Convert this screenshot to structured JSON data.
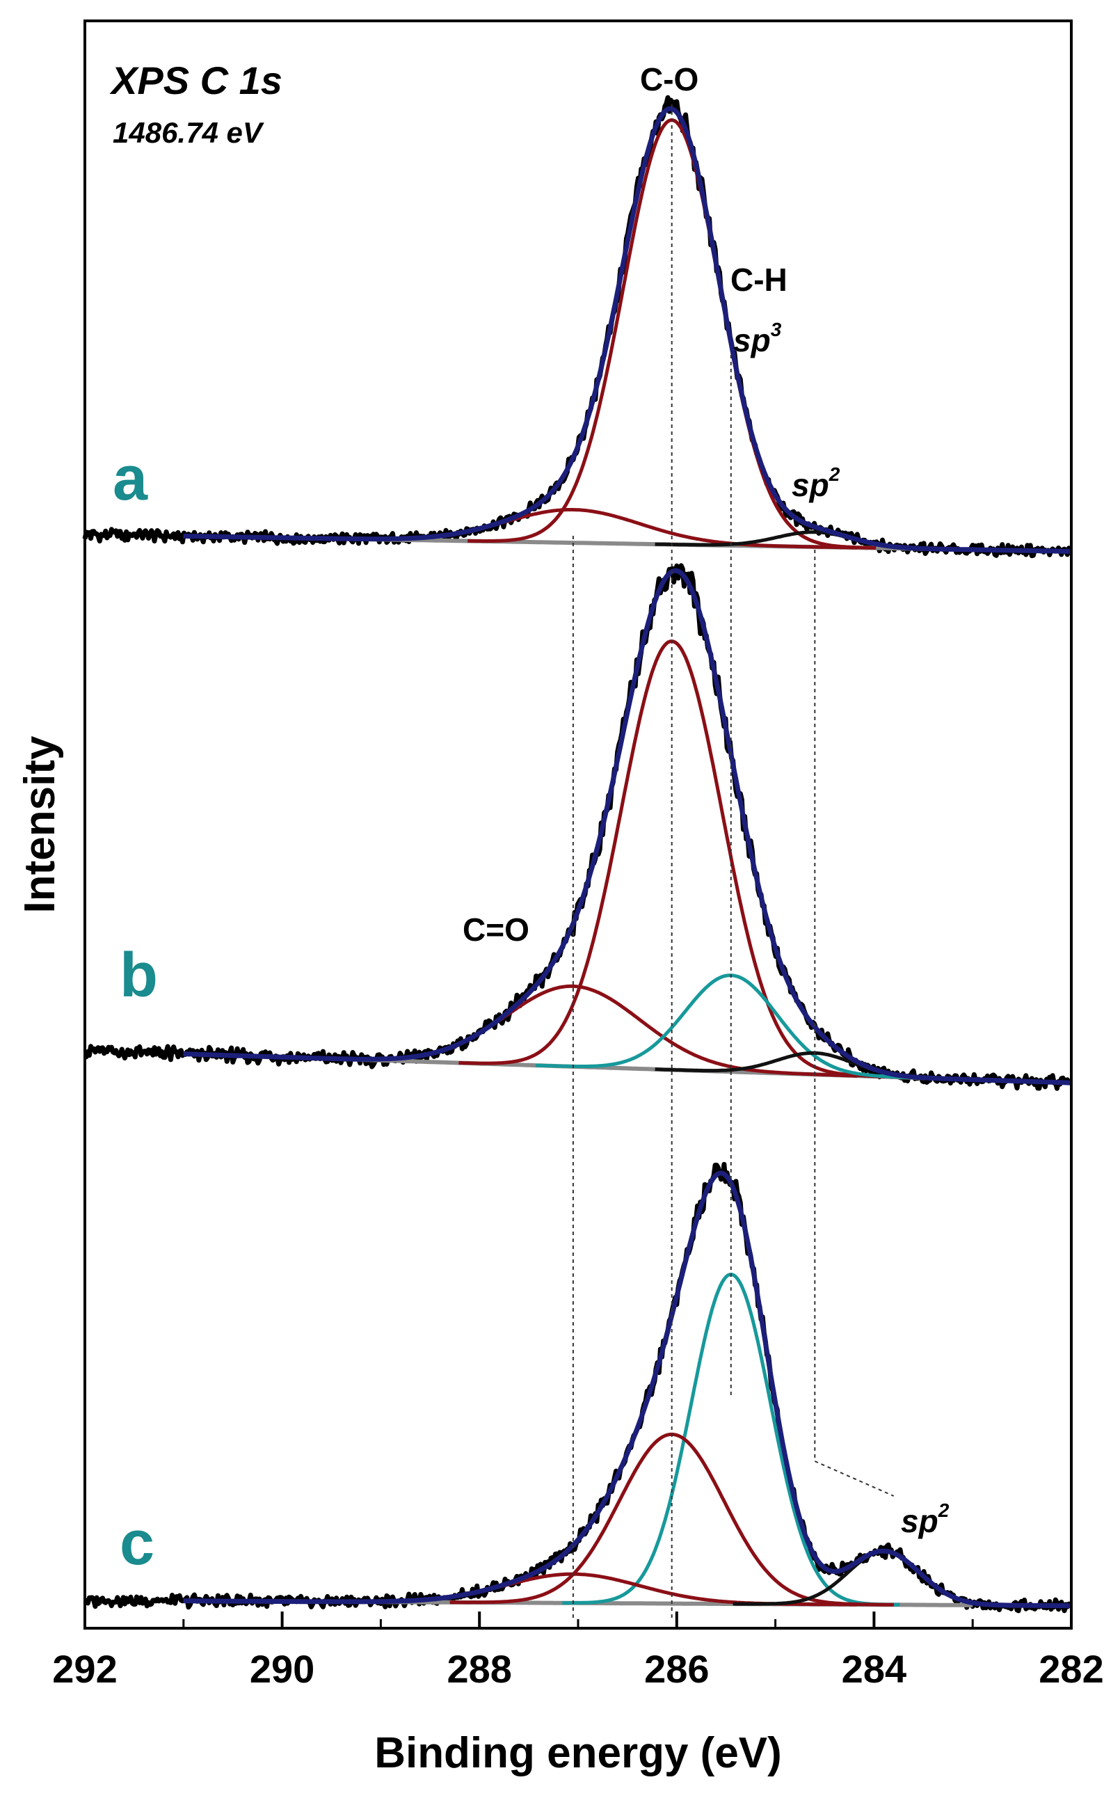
{
  "chart_data": {
    "type": "line",
    "title": "XPS C 1s",
    "subtitle": "1486.74 eV",
    "xlabel": "Binding energy (eV)",
    "ylabel": "Intensity",
    "xlim": [
      292,
      282
    ],
    "x_reversed": true,
    "xticks": [
      292,
      290,
      288,
      286,
      284,
      282
    ],
    "colors": {
      "raw": "#000000",
      "envelope": "#1c1f7a",
      "co": "#8b0f16",
      "ch": "#17999b",
      "sp2": "#111111",
      "background": "#8a8a8a",
      "panel_label": "#1a8b8e"
    },
    "components": [
      {
        "name": "C=O",
        "center_eV": 287.05
      },
      {
        "name": "C-O",
        "center_eV": 286.05
      },
      {
        "name": "C-H sp3",
        "center_eV": 285.45
      },
      {
        "name": "sp2",
        "center_eV": 284.6
      }
    ],
    "panels": [
      {
        "label": "a",
        "baseline_left": 0.0,
        "baseline_right": -0.04,
        "peaks": [
          {
            "name": "C-O",
            "center": 286.05,
            "fwhm": 1.15,
            "height": 1.0
          },
          {
            "name": "C=O",
            "center": 287.05,
            "fwhm": 1.6,
            "height": 0.078
          },
          {
            "name": "sp2",
            "center": 284.6,
            "fwhm": 0.9,
            "height": 0.035
          }
        ]
      },
      {
        "label": "b",
        "baseline_left": 0.0,
        "baseline_right": -0.06,
        "peaks": [
          {
            "name": "C-O",
            "center": 286.05,
            "fwhm": 1.2,
            "height": 0.8
          },
          {
            "name": "C=O",
            "center": 287.05,
            "fwhm": 1.6,
            "height": 0.15
          },
          {
            "name": "C-H sp3",
            "center": 285.45,
            "fwhm": 1.1,
            "height": 0.18
          },
          {
            "name": "sp2",
            "center": 284.6,
            "fwhm": 0.9,
            "height": 0.04
          }
        ]
      },
      {
        "label": "c",
        "baseline_left": 0.0,
        "baseline_right": -0.012,
        "peaks": [
          {
            "name": "C-H sp3",
            "center": 285.45,
            "fwhm": 0.95,
            "height": 0.74
          },
          {
            "name": "C-O",
            "center": 286.05,
            "fwhm": 1.25,
            "height": 0.38
          },
          {
            "name": "C=O",
            "center": 287.05,
            "fwhm": 1.6,
            "height": 0.065
          },
          {
            "name": "sp2",
            "center": 283.9,
            "fwhm": 0.85,
            "height": 0.12
          }
        ]
      }
    ],
    "annotations": {
      "co": "C-O",
      "ch": "C-H",
      "sp3": "sp",
      "sp3_sup": "3",
      "sp2": "sp",
      "sp2_sup": "2",
      "cdo": "C=O"
    }
  }
}
